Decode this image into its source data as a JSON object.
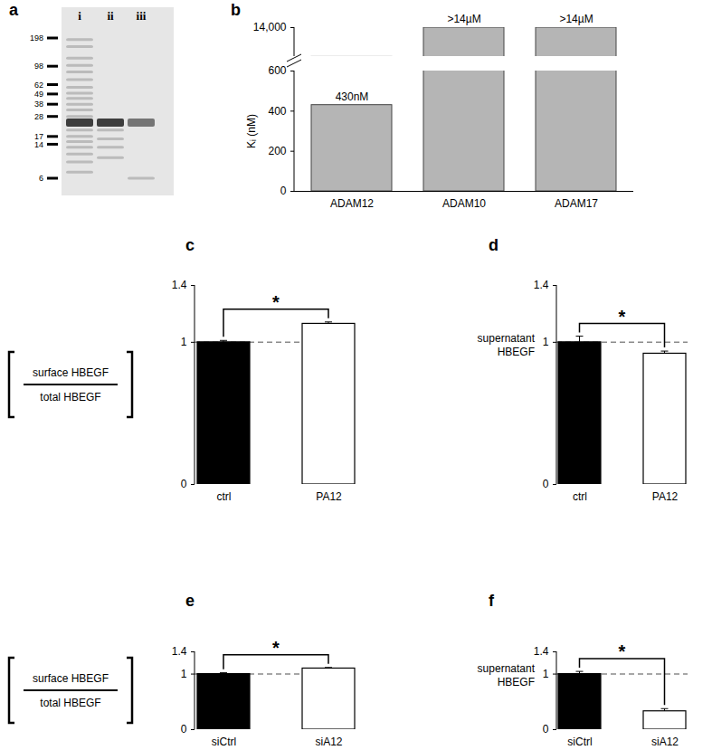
{
  "chart_data": [
    {
      "type": "gel",
      "title": "a",
      "markers": [
        198,
        98,
        62,
        49,
        38,
        28,
        17,
        14,
        6
      ],
      "main_band": 24,
      "lanes": [
        {
          "name": "i",
          "bands": [
            190,
            160,
            120,
            100,
            85,
            70,
            58,
            50,
            44,
            38,
            33,
            28,
            24,
            20,
            17,
            15,
            13,
            11,
            9,
            7
          ]
        },
        {
          "name": "ii",
          "bands": [
            24,
            20,
            16,
            13,
            10
          ]
        },
        {
          "name": "iii",
          "bands": [
            24,
            6
          ]
        }
      ]
    },
    {
      "type": "bar",
      "title": "b",
      "categories": [
        "ADAM12",
        "ADAM10",
        "ADAM17"
      ],
      "values": [
        430,
        14000,
        14000
      ],
      "value_labels": [
        "430nM",
        ">14µM",
        ">14µM"
      ],
      "data_labels": true,
      "ylabel": "Kᵢ (nM)",
      "color": "#b5b5b5",
      "ylim": [
        0,
        14000
      ],
      "yticks": [
        0,
        200,
        400,
        600,
        {
          "value": 14000,
          "label": "14,000"
        }
      ]
    },
    {
      "type": "bar",
      "title": "c",
      "categories": [
        "ctrl",
        "PA12"
      ],
      "values": [
        1.0,
        1.13
      ],
      "errors": [
        0.01,
        0.01
      ],
      "colors": [
        "#000000",
        "#ffffff"
      ],
      "ylabel": {
        "numerator": "surface HBEGF",
        "denominator": "total HBEGF"
      },
      "ylim": [
        0,
        1.4
      ],
      "yticks": [
        0,
        1,
        1.4
      ],
      "reference_line": 1,
      "annotations": [
        {
          "text": "*",
          "from": "ctrl",
          "to": "PA12"
        }
      ]
    },
    {
      "type": "bar",
      "title": "d",
      "categories": [
        "ctrl",
        "PA12"
      ],
      "values": [
        1.0,
        0.92
      ],
      "errors": [
        0.04,
        0.015
      ],
      "colors": [
        "#000000",
        "#ffffff"
      ],
      "ylabel": [
        "supernatant",
        "HBEGF"
      ],
      "ylim": [
        0,
        1.4
      ],
      "yticks": [
        0,
        1,
        1.4
      ],
      "reference_line": 1,
      "annotations": [
        {
          "text": "*",
          "from": "ctrl",
          "to": "PA12"
        }
      ]
    },
    {
      "type": "bar",
      "title": "e",
      "categories": [
        "siCtrl",
        "siA12"
      ],
      "values": [
        1.0,
        1.1
      ],
      "errors": [
        0.015,
        0.01
      ],
      "colors": [
        "#000000",
        "#ffffff"
      ],
      "ylabel": {
        "numerator": "surface HBEGF",
        "denominator": "total HBEGF"
      },
      "ylim": [
        0,
        1.4
      ],
      "yticks": [
        0,
        1,
        1.4
      ],
      "reference_line": 1,
      "annotations": [
        {
          "text": "*",
          "from": "siCtrl",
          "to": "siA12"
        }
      ]
    },
    {
      "type": "bar",
      "title": "f",
      "categories": [
        "siCtrl",
        "siA12"
      ],
      "values": [
        1.0,
        0.33
      ],
      "errors": [
        0.04,
        0.04
      ],
      "colors": [
        "#000000",
        "#ffffff"
      ],
      "ylabel": [
        "supernatant",
        "HBEGF"
      ],
      "ylim": [
        0,
        1.4
      ],
      "yticks": [
        0,
        1,
        1.4
      ],
      "reference_line": 1,
      "annotations": [
        {
          "text": "*",
          "from": "siCtrl",
          "to": "siA12"
        }
      ]
    }
  ]
}
